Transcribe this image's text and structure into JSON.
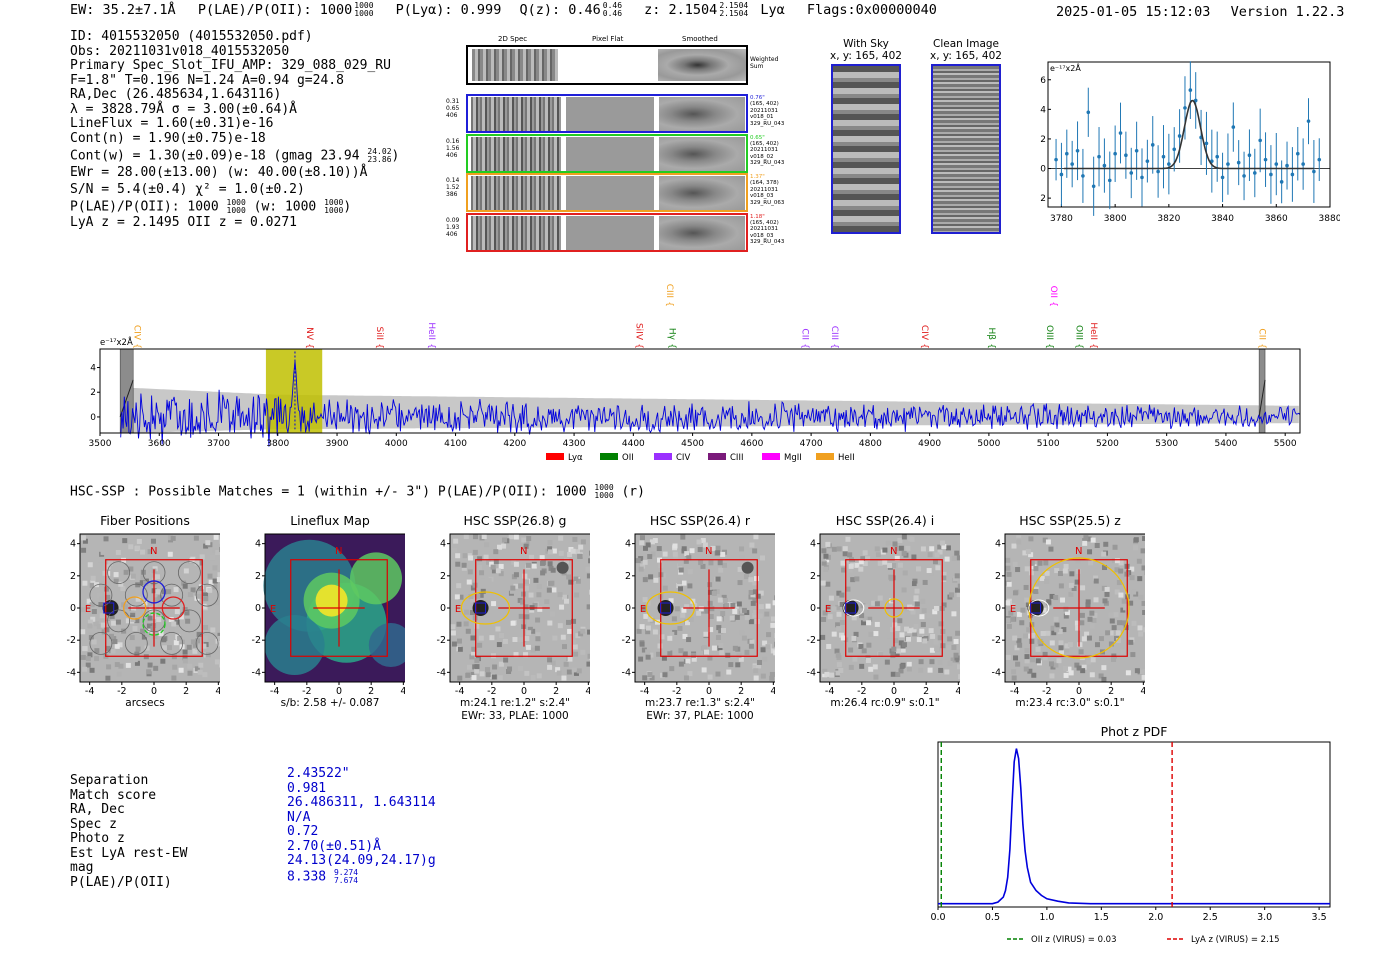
{
  "header": {
    "ew": "EW: 35.2±7.1Å",
    "plae": "P(LAE)/P(OII): 1000",
    "plae_sup": "1000",
    "plae_sub": "1000",
    "plya": "P(Lyα): 0.999",
    "qz": "Q(z): 0.46",
    "qz_sup": "0.46",
    "qz_sub": "0.46",
    "z": "z: 2.1504",
    "z_sup": "2.1504",
    "z_sub": "2.1504",
    "z_line": "Lyα",
    "flags": "Flags:0x00000040",
    "timestamp": "2025-01-05 15:12:03",
    "version": "Version 1.22.3"
  },
  "info": {
    "lines": [
      "ID: 4015532050 (4015532050.pdf)",
      "Obs: 20211031v018_4015532050",
      "Primary Spec_Slot_IFU_AMP: 329_088_029_RU",
      "F=1.8\"  T=0.196  N=1.24  A=0.94  g=24.8",
      "RA,Dec (26.485634,1.643116)",
      "λ = 3828.79Å  σ = 3.00(±0.64)Å",
      "LineFlux = 1.60(±0.31)e-16",
      "Cont(n) = 1.90(±0.75)e-18"
    ],
    "contw": "Cont(w) = 1.30(±0.09)e-18 (gmag 23.94",
    "contw_sup": "24.02",
    "contw_sub": "23.86",
    "contw_end": ")",
    "ewr": "EWr = 28.00(±13.00) (w: 40.00(±8.10))Å",
    "sn": "S/N = 5.4(±0.4)  χ² = 1.0(±0.2)",
    "plae": "P(LAE)/P(OII): 1000",
    "plae_sup": "1000",
    "plae_sub": "1000",
    "plae_w": "(w: 1000",
    "plae_w_sup": "1000",
    "plae_w_sub": "1000",
    "plae_w_end": ")",
    "lya": "LyA z = 2.1495   OII z = 0.0271"
  },
  "cutouts": {
    "col_labels": [
      "2D Spec",
      "Pixel Flat",
      "Smoothed"
    ],
    "weighted_sum": "Weighted Sum",
    "rows": [
      {
        "left": [
          "0.31",
          "0.65",
          "406"
        ],
        "right": [
          "0.76\"",
          "(165, 402)",
          "20211031",
          "v018_01",
          "329_RU_043"
        ],
        "color": "#1f1fd8"
      },
      {
        "left": [
          "0.16",
          "1.56",
          "406"
        ],
        "right": [
          "0.65\"",
          "(165, 402)",
          "20211031",
          "v018_02",
          "329_RU_043"
        ],
        "color": "#22cc22"
      },
      {
        "left": [
          "0.14",
          "1.52",
          "386"
        ],
        "right": [
          "1.37\"",
          "(164, 378)",
          "20211031",
          "v018_03",
          "329_RU_063"
        ],
        "color": "#f0a020"
      },
      {
        "left": [
          "0.09",
          "1.93",
          "406"
        ],
        "right": [
          "1.18\"",
          "(165, 402)",
          "20211031",
          "v018_03",
          "329_RU_043"
        ],
        "color": "#e02020"
      }
    ],
    "with_sky": {
      "title": "With Sky",
      "coords": "x, y: 165, 402"
    },
    "clean": {
      "title": "Clean Image",
      "coords": "x, y: 165, 402"
    }
  },
  "zoom_chart": {
    "unit": "e⁻¹⁷x2Å",
    "xticks": [
      "3780",
      "3800",
      "3820",
      "3840",
      "3860",
      "3880"
    ],
    "yticks": [
      "-2",
      "0",
      "2",
      "4",
      "6"
    ]
  },
  "spectrum": {
    "unit": "e⁻¹⁷x2Å",
    "xticks": [
      "3500",
      "3600",
      "3700",
      "3800",
      "3900",
      "4000",
      "4100",
      "4200",
      "4300",
      "4400",
      "4500",
      "4600",
      "4700",
      "4800",
      "4900",
      "5000",
      "5100",
      "5200",
      "5300",
      "5400",
      "5500"
    ],
    "yticks": [
      "0",
      "2",
      "4"
    ],
    "lines": [
      {
        "label": "CIV",
        "color": "#f0a020",
        "wl": 3553
      },
      {
        "label": "NV",
        "color": "#e02020",
        "wl": 3844
      },
      {
        "label": "SiII",
        "color": "#e02020",
        "wl": 3962
      },
      {
        "label": "HeII",
        "color": "#9b30ff",
        "wl": 4050
      },
      {
        "label": "SiIV",
        "color": "#e02020",
        "wl": 4400
      },
      {
        "label": "CIII",
        "color": "#f0a020",
        "wl": 4452
      },
      {
        "label": "Hγ",
        "color": "#108010",
        "wl": 4456
      },
      {
        "label": "CII",
        "color": "#9b30ff",
        "wl": 4680
      },
      {
        "label": "CIII",
        "color": "#9b30ff",
        "wl": 4730
      },
      {
        "label": "CIV",
        "color": "#e02020",
        "wl": 4882
      },
      {
        "label": "Hβ",
        "color": "#108010",
        "wl": 4995
      },
      {
        "label": "OII",
        "color": "#ff00ff",
        "wl": 5100
      },
      {
        "label": "OIII",
        "color": "#108010",
        "wl": 5093
      },
      {
        "label": "OIII",
        "color": "#108010",
        "wl": 5143
      },
      {
        "label": "HeII",
        "color": "#e02020",
        "wl": 5167
      },
      {
        "label": "CII",
        "color": "#f0a020",
        "wl": 5452
      }
    ],
    "legend": [
      {
        "label": "Lyα",
        "color": "#ff0000"
      },
      {
        "label": "OII",
        "color": "#008000"
      },
      {
        "label": "CIV",
        "color": "#9b30ff"
      },
      {
        "label": "CIII",
        "color": "#7a1a7a"
      },
      {
        "label": "MgII",
        "color": "#ff00ff"
      },
      {
        "label": "HeII",
        "color": "#f0a020"
      }
    ]
  },
  "hsc": {
    "title": "HSC-SSP : Possible Matches = 1 (within +/- 3\")  P(LAE)/P(OII): 1000",
    "title_sup": "1000",
    "title_sub": "1000",
    "title_end": "(r)",
    "panels": [
      {
        "title": "Fiber Positions",
        "cap1": "arcsecs",
        "cap2": ""
      },
      {
        "title": "Lineflux Map",
        "cap1": "s/b: 2.58 +/- 0.087",
        "cap2": ""
      },
      {
        "title": "HSC SSP(26.8) g",
        "cap1": "m:24.1  re:1.2\"  s:2.4\"",
        "cap2": "EWr: 33, PLAE: 1000"
      },
      {
        "title": "HSC SSP(26.4) r",
        "cap1": "m:23.7  re:1.3\"  s:2.4\"",
        "cap2": "EWr: 37, PLAE: 1000"
      },
      {
        "title": "HSC SSP(26.4) i",
        "cap1": "m:26.4 rc:0.9\"  s:0.1\"",
        "cap2": ""
      },
      {
        "title": "HSC SSP(25.5) z",
        "cap1": "m:23.4 rc:3.0\"  s:0.1\"",
        "cap2": ""
      }
    ],
    "ticks": [
      "-4",
      "-2",
      "0",
      "2",
      "4"
    ],
    "n_label": "N",
    "e_label": "E"
  },
  "separation": {
    "labels": [
      "Separation",
      "Match score",
      "RA, Dec",
      "Spec z",
      "Photo z",
      "Est LyA rest-EW",
      "mag",
      "P(LAE)/P(OII)"
    ],
    "values": [
      "2.43522\"",
      "0.981",
      "26.486311, 1.643114",
      "N/A",
      "0.72",
      "2.70(±0.51)Å",
      "24.13(24.09,24.17)g",
      "8.338"
    ],
    "plae_sup": "9.274",
    "plae_sub": "7.674"
  },
  "chart_data": [
    {
      "type": "scatter",
      "title": "",
      "ylabel": "e-17x2Å",
      "xlim": [
        3775,
        3880
      ],
      "ylim": [
        -2.6,
        7.2
      ],
      "x": [
        3778,
        3780,
        3782,
        3784,
        3786,
        3788,
        3790,
        3792,
        3794,
        3796,
        3798,
        3800,
        3802,
        3804,
        3806,
        3808,
        3810,
        3812,
        3814,
        3816,
        3818,
        3820,
        3822,
        3824,
        3826,
        3828,
        3830,
        3832,
        3834,
        3836,
        3838,
        3840,
        3842,
        3844,
        3846,
        3848,
        3850,
        3852,
        3854,
        3856,
        3858,
        3860,
        3862,
        3864,
        3866,
        3868,
        3870,
        3872,
        3874,
        3876
      ],
      "y": [
        0.6,
        -0.4,
        1.0,
        0.3,
        1.2,
        -0.5,
        3.8,
        -1.2,
        0.8,
        0.2,
        -0.8,
        1.0,
        2.4,
        0.9,
        -0.3,
        1.2,
        -0.6,
        0.5,
        1.6,
        -0.2,
        0.8,
        0.3,
        1.3,
        2.2,
        4.1,
        5.3,
        4.6,
        2.1,
        1.7,
        0.5,
        0.8,
        -0.6,
        0.3,
        2.8,
        0.4,
        -0.5,
        0.9,
        -0.3,
        1.9,
        0.6,
        -0.4,
        0.3,
        -0.9,
        0.2,
        -0.4,
        1.0,
        0.3,
        3.2,
        -0.2,
        0.6
      ],
      "fit_center": 3828.8,
      "fit_sigma": 3.0,
      "fit_amp": 4.6
    },
    {
      "type": "line",
      "title": "",
      "xlabel": "",
      "ylabel": "e-17x2Å",
      "xlim": [
        3500,
        5525
      ],
      "ylim": [
        -1.3,
        5.5
      ],
      "series": [
        {
          "name": "spectrum",
          "color": "#0000dd"
        }
      ],
      "highlight_band": [
        3780,
        3875
      ],
      "zero_regions": [
        [
          3534,
          3556
        ],
        [
          5456,
          5466
        ]
      ]
    },
    {
      "type": "line",
      "title": "Phot z PDF",
      "xlim": [
        0.0,
        3.6
      ],
      "ylim": [
        0,
        1.0
      ],
      "x": [
        0.0,
        0.5,
        0.55,
        0.6,
        0.62,
        0.64,
        0.66,
        0.68,
        0.7,
        0.72,
        0.74,
        0.76,
        0.78,
        0.8,
        0.82,
        0.85,
        0.9,
        0.95,
        1.0,
        1.1,
        1.2,
        1.4,
        2.0,
        3.6
      ],
      "y": [
        0.02,
        0.02,
        0.03,
        0.06,
        0.1,
        0.18,
        0.35,
        0.62,
        0.88,
        0.96,
        0.9,
        0.72,
        0.5,
        0.34,
        0.24,
        0.15,
        0.1,
        0.07,
        0.05,
        0.035,
        0.025,
        0.02,
        0.02,
        0.02
      ],
      "xticks": [
        "0.0",
        "0.5",
        "1.0",
        "1.5",
        "2.0",
        "2.5",
        "3.0",
        "3.5"
      ],
      "vlines": [
        {
          "x": 0.03,
          "color": "#008000",
          "label": "OII z (VIRUS) = 0.03"
        },
        {
          "x": 2.15,
          "color": "#dd0000",
          "label": "LyA z (VIRUS) = 2.15"
        }
      ]
    }
  ]
}
